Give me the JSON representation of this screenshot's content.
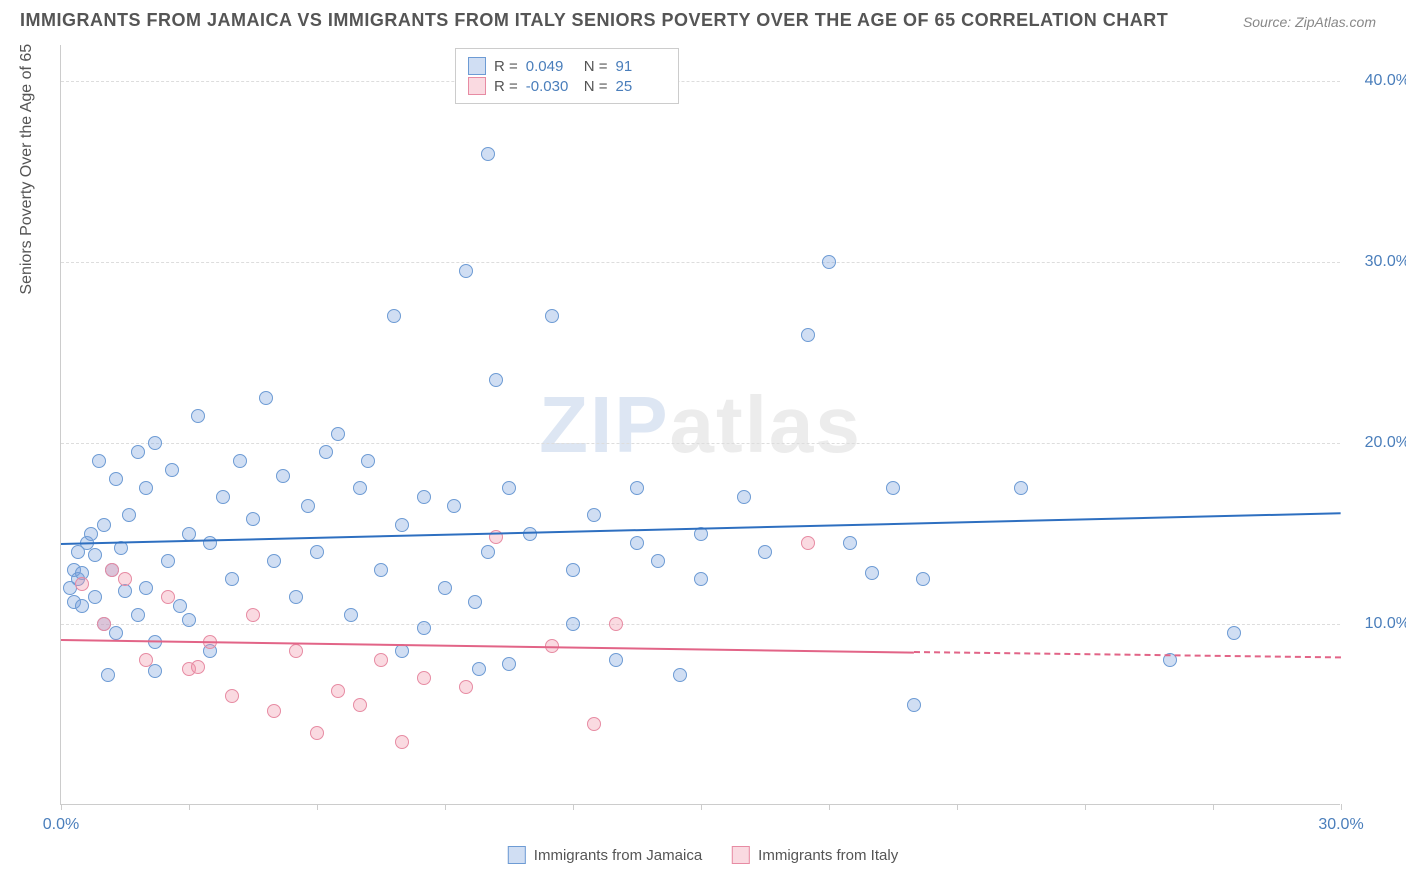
{
  "title": "IMMIGRANTS FROM JAMAICA VS IMMIGRANTS FROM ITALY SENIORS POVERTY OVER THE AGE OF 65 CORRELATION CHART",
  "source": "Source: ZipAtlas.com",
  "ylabel": "Seniors Poverty Over the Age of 65",
  "watermark_a": "ZIP",
  "watermark_b": "atlas",
  "chart": {
    "type": "scatter",
    "xlim": [
      0,
      30
    ],
    "ylim": [
      0,
      42
    ],
    "xtick_marks": [
      0,
      3,
      6,
      9,
      12,
      15,
      18,
      21,
      24,
      27,
      30
    ],
    "xtick_labels": [
      {
        "x": 0,
        "label": "0.0%"
      },
      {
        "x": 30,
        "label": "30.0%"
      }
    ],
    "ytick_labels": [
      {
        "y": 10,
        "label": "10.0%"
      },
      {
        "y": 20,
        "label": "20.0%"
      },
      {
        "y": 30,
        "label": "30.0%"
      },
      {
        "y": 40,
        "label": "40.0%"
      }
    ],
    "grid_dash_color": "#dddddd",
    "series": [
      {
        "name": "Immigrants from Jamaica",
        "fill": "rgba(120,160,220,0.35)",
        "stroke": "#6d9bd4",
        "trend_color": "#2e6fc0",
        "trend": {
          "x1": 0,
          "y1": 14.5,
          "x2": 30,
          "y2": 16.2
        },
        "R": "0.049",
        "N": "91",
        "points": [
          [
            0.2,
            12.0
          ],
          [
            0.3,
            11.2
          ],
          [
            0.3,
            13.0
          ],
          [
            0.4,
            12.5
          ],
          [
            0.4,
            14.0
          ],
          [
            0.5,
            11.0
          ],
          [
            0.5,
            12.8
          ],
          [
            0.6,
            14.5
          ],
          [
            0.7,
            15.0
          ],
          [
            0.8,
            13.8
          ],
          [
            0.8,
            11.5
          ],
          [
            0.9,
            19.0
          ],
          [
            1.0,
            15.5
          ],
          [
            1.0,
            10.0
          ],
          [
            1.1,
            7.2
          ],
          [
            1.2,
            13.0
          ],
          [
            1.3,
            18.0
          ],
          [
            1.3,
            9.5
          ],
          [
            1.4,
            14.2
          ],
          [
            1.5,
            11.8
          ],
          [
            1.6,
            16.0
          ],
          [
            1.8,
            19.5
          ],
          [
            1.8,
            10.5
          ],
          [
            2.0,
            12.0
          ],
          [
            2.0,
            17.5
          ],
          [
            2.2,
            20.0
          ],
          [
            2.2,
            9.0
          ],
          [
            2.2,
            7.4
          ],
          [
            2.5,
            13.5
          ],
          [
            2.6,
            18.5
          ],
          [
            2.8,
            11.0
          ],
          [
            3.0,
            15.0
          ],
          [
            3.0,
            10.2
          ],
          [
            3.2,
            21.5
          ],
          [
            3.5,
            14.5
          ],
          [
            3.5,
            8.5
          ],
          [
            3.8,
            17.0
          ],
          [
            4.0,
            12.5
          ],
          [
            4.2,
            19.0
          ],
          [
            4.5,
            15.8
          ],
          [
            4.8,
            22.5
          ],
          [
            5.0,
            13.5
          ],
          [
            5.2,
            18.2
          ],
          [
            5.5,
            11.5
          ],
          [
            5.8,
            16.5
          ],
          [
            6.0,
            14.0
          ],
          [
            6.2,
            19.5
          ],
          [
            6.5,
            20.5
          ],
          [
            6.8,
            10.5
          ],
          [
            7.0,
            17.5
          ],
          [
            7.2,
            19.0
          ],
          [
            7.5,
            13.0
          ],
          [
            7.8,
            27.0
          ],
          [
            8.0,
            15.5
          ],
          [
            8.0,
            8.5
          ],
          [
            8.5,
            17.0
          ],
          [
            8.5,
            9.8
          ],
          [
            9.0,
            12.0
          ],
          [
            9.2,
            16.5
          ],
          [
            9.5,
            29.5
          ],
          [
            9.7,
            11.2
          ],
          [
            9.8,
            7.5
          ],
          [
            10.0,
            14.0
          ],
          [
            10.0,
            36.0
          ],
          [
            10.2,
            23.5
          ],
          [
            10.5,
            17.5
          ],
          [
            10.5,
            7.8
          ],
          [
            11.0,
            15.0
          ],
          [
            11.5,
            27.0
          ],
          [
            12.0,
            13.0
          ],
          [
            12.0,
            10.0
          ],
          [
            12.5,
            16.0
          ],
          [
            13.0,
            8.0
          ],
          [
            13.5,
            14.5
          ],
          [
            13.5,
            17.5
          ],
          [
            14.0,
            13.5
          ],
          [
            14.5,
            7.2
          ],
          [
            15.0,
            15.0
          ],
          [
            15.0,
            12.5
          ],
          [
            16.0,
            17.0
          ],
          [
            16.5,
            14.0
          ],
          [
            17.5,
            26.0
          ],
          [
            18.0,
            30.0
          ],
          [
            18.5,
            14.5
          ],
          [
            19.0,
            12.8
          ],
          [
            19.5,
            17.5
          ],
          [
            20.0,
            5.5
          ],
          [
            20.2,
            12.5
          ],
          [
            22.5,
            17.5
          ],
          [
            26.0,
            8.0
          ],
          [
            27.5,
            9.5
          ]
        ]
      },
      {
        "name": "Immigrants from Italy",
        "fill": "rgba(240,150,170,0.35)",
        "stroke": "#e78ba3",
        "trend_color": "#e26487",
        "trend": {
          "x1": 0,
          "y1": 9.2,
          "x2": 20,
          "y2": 8.5
        },
        "trend_ext": {
          "x1": 20,
          "y1": 8.5,
          "x2": 30,
          "y2": 8.2
        },
        "R": "-0.030",
        "N": "25",
        "points": [
          [
            0.5,
            12.2
          ],
          [
            1.0,
            10.0
          ],
          [
            1.2,
            13.0
          ],
          [
            1.5,
            12.5
          ],
          [
            2.0,
            8.0
          ],
          [
            2.5,
            11.5
          ],
          [
            3.0,
            7.5
          ],
          [
            3.2,
            7.6
          ],
          [
            3.5,
            9.0
          ],
          [
            4.0,
            6.0
          ],
          [
            4.5,
            10.5
          ],
          [
            5.0,
            5.2
          ],
          [
            5.5,
            8.5
          ],
          [
            6.0,
            4.0
          ],
          [
            6.5,
            6.3
          ],
          [
            7.0,
            5.5
          ],
          [
            7.5,
            8.0
          ],
          [
            8.0,
            3.5
          ],
          [
            8.5,
            7.0
          ],
          [
            9.5,
            6.5
          ],
          [
            10.2,
            14.8
          ],
          [
            11.5,
            8.8
          ],
          [
            12.5,
            4.5
          ],
          [
            13.0,
            10.0
          ],
          [
            17.5,
            14.5
          ]
        ]
      }
    ]
  },
  "legend": {
    "r_label": "R =",
    "n_label": "N ="
  }
}
